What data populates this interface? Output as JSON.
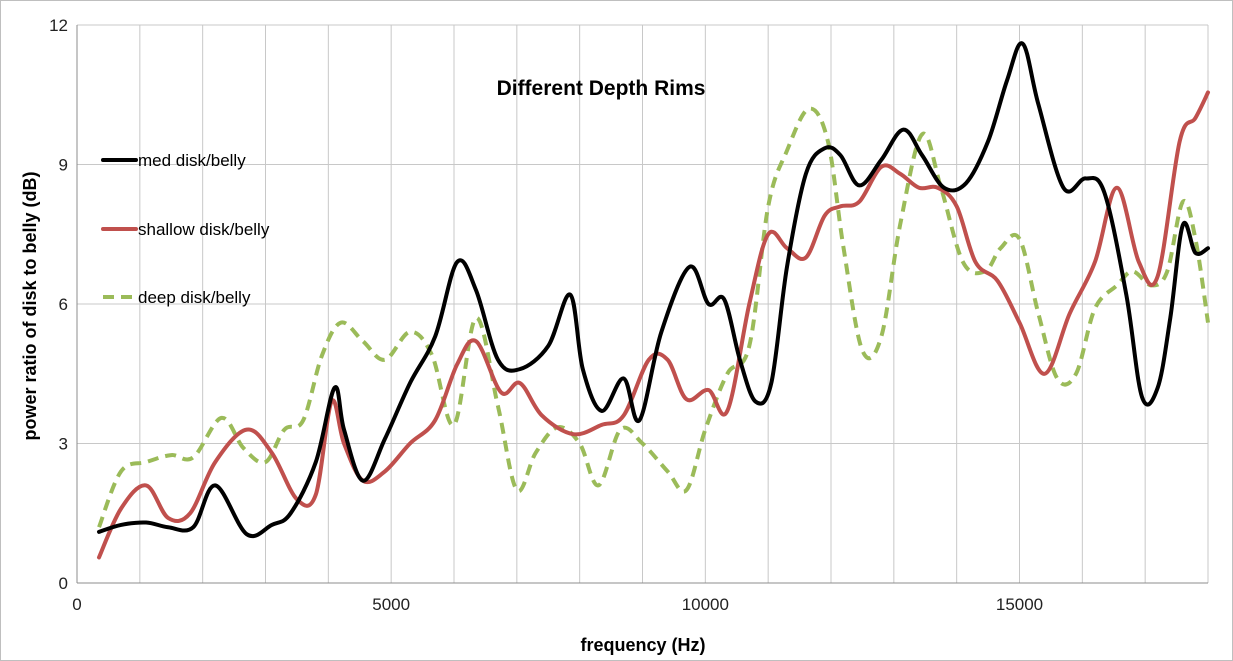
{
  "chart_data": {
    "type": "line",
    "title": "Different Depth Rims",
    "xlabel": "frequency  (Hz)",
    "ylabel": "power ratio of disk to belly  (dB)",
    "xlim": [
      0,
      18000
    ],
    "ylim": [
      0,
      12
    ],
    "x_major_ticks": [
      0,
      5000,
      10000,
      15000
    ],
    "x_minor_step": 1000,
    "y_ticks": [
      0,
      3,
      6,
      9,
      12
    ],
    "grid": true,
    "legend_position": "left",
    "series": [
      {
        "name": "med disk/belly",
        "color": "#000000",
        "dash": "solid",
        "x": [
          350,
          700,
          1100,
          1450,
          1850,
          2200,
          2700,
          3100,
          3400,
          3800,
          4100,
          4250,
          4550,
          4900,
          5300,
          5700,
          6050,
          6350,
          6700,
          7050,
          7500,
          7850,
          8050,
          8350,
          8700,
          8950,
          9300,
          9750,
          10050,
          10300,
          10550,
          10800,
          11050,
          11300,
          11600,
          11900,
          12150,
          12450,
          12800,
          13150,
          13450,
          13800,
          14150,
          14500,
          14800,
          15050,
          15300,
          15700,
          16050,
          16350,
          16700,
          16950,
          17200,
          17400,
          17600,
          17800,
          18000
        ],
        "values": [
          1.1,
          1.25,
          1.3,
          1.2,
          1.2,
          2.1,
          1.05,
          1.25,
          1.5,
          2.6,
          4.2,
          3.3,
          2.2,
          3.1,
          4.3,
          5.3,
          6.9,
          6.3,
          4.8,
          4.6,
          5.1,
          6.2,
          4.6,
          3.7,
          4.4,
          3.5,
          5.4,
          6.8,
          6.0,
          6.1,
          4.8,
          3.9,
          4.3,
          6.8,
          8.8,
          9.35,
          9.2,
          8.55,
          9.1,
          9.75,
          9.2,
          8.5,
          8.6,
          9.5,
          10.8,
          11.6,
          10.3,
          8.5,
          8.7,
          8.4,
          6.2,
          4.0,
          4.2,
          5.7,
          7.7,
          7.1,
          7.2
        ]
      },
      {
        "name": "shallow disk/belly",
        "color": "#c0504d",
        "dash": "solid",
        "x": [
          350,
          700,
          1100,
          1450,
          1800,
          2200,
          2700,
          3100,
          3500,
          3800,
          4050,
          4250,
          4550,
          4900,
          5300,
          5700,
          6050,
          6350,
          6750,
          7050,
          7400,
          7900,
          8350,
          8700,
          9100,
          9400,
          9700,
          10050,
          10350,
          10700,
          11000,
          11300,
          11600,
          11900,
          12150,
          12450,
          12800,
          13100,
          13400,
          13700,
          14000,
          14300,
          14650,
          15000,
          15400,
          15800,
          16200,
          16550,
          16900,
          17200,
          17550,
          17800,
          18000
        ],
        "values": [
          0.55,
          1.6,
          2.1,
          1.4,
          1.5,
          2.6,
          3.3,
          2.8,
          1.8,
          1.9,
          3.9,
          3.0,
          2.2,
          2.4,
          3.0,
          3.5,
          4.7,
          5.2,
          4.1,
          4.3,
          3.6,
          3.2,
          3.4,
          3.6,
          4.8,
          4.8,
          3.95,
          4.15,
          3.7,
          6.0,
          7.5,
          7.2,
          7.0,
          7.9,
          8.1,
          8.2,
          8.95,
          8.8,
          8.5,
          8.5,
          8.1,
          6.9,
          6.5,
          5.6,
          4.5,
          5.8,
          6.9,
          8.5,
          6.9,
          6.6,
          9.5,
          10.0,
          10.55
        ]
      },
      {
        "name": "deep disk/belly",
        "color": "#9bbb59",
        "dash": "dashed",
        "x": [
          350,
          700,
          1100,
          1500,
          1850,
          2300,
          2650,
          3000,
          3300,
          3600,
          3900,
          4200,
          4550,
          4900,
          5300,
          5650,
          6000,
          6350,
          6700,
          7000,
          7300,
          7650,
          8000,
          8300,
          8650,
          9000,
          9400,
          9700,
          10000,
          10350,
          10700,
          11000,
          11300,
          11650,
          11950,
          12200,
          12500,
          12800,
          13100,
          13450,
          13750,
          14100,
          14450,
          14700,
          15000,
          15300,
          15600,
          15900,
          16200,
          16550,
          16800,
          17100,
          17350,
          17600,
          17800,
          18000
        ],
        "values": [
          1.2,
          2.4,
          2.6,
          2.75,
          2.7,
          3.55,
          2.9,
          2.6,
          3.3,
          3.5,
          4.9,
          5.6,
          5.2,
          4.8,
          5.4,
          4.9,
          3.4,
          5.7,
          3.8,
          2.0,
          2.8,
          3.35,
          3.0,
          2.1,
          3.3,
          3.0,
          2.4,
          2.0,
          3.3,
          4.5,
          5.1,
          8.1,
          9.3,
          10.2,
          9.5,
          7.2,
          5.0,
          5.3,
          7.7,
          9.65,
          8.5,
          6.9,
          6.7,
          7.2,
          7.4,
          5.8,
          4.4,
          4.5,
          5.9,
          6.4,
          6.7,
          6.4,
          6.7,
          8.2,
          7.4,
          5.6
        ]
      }
    ]
  }
}
